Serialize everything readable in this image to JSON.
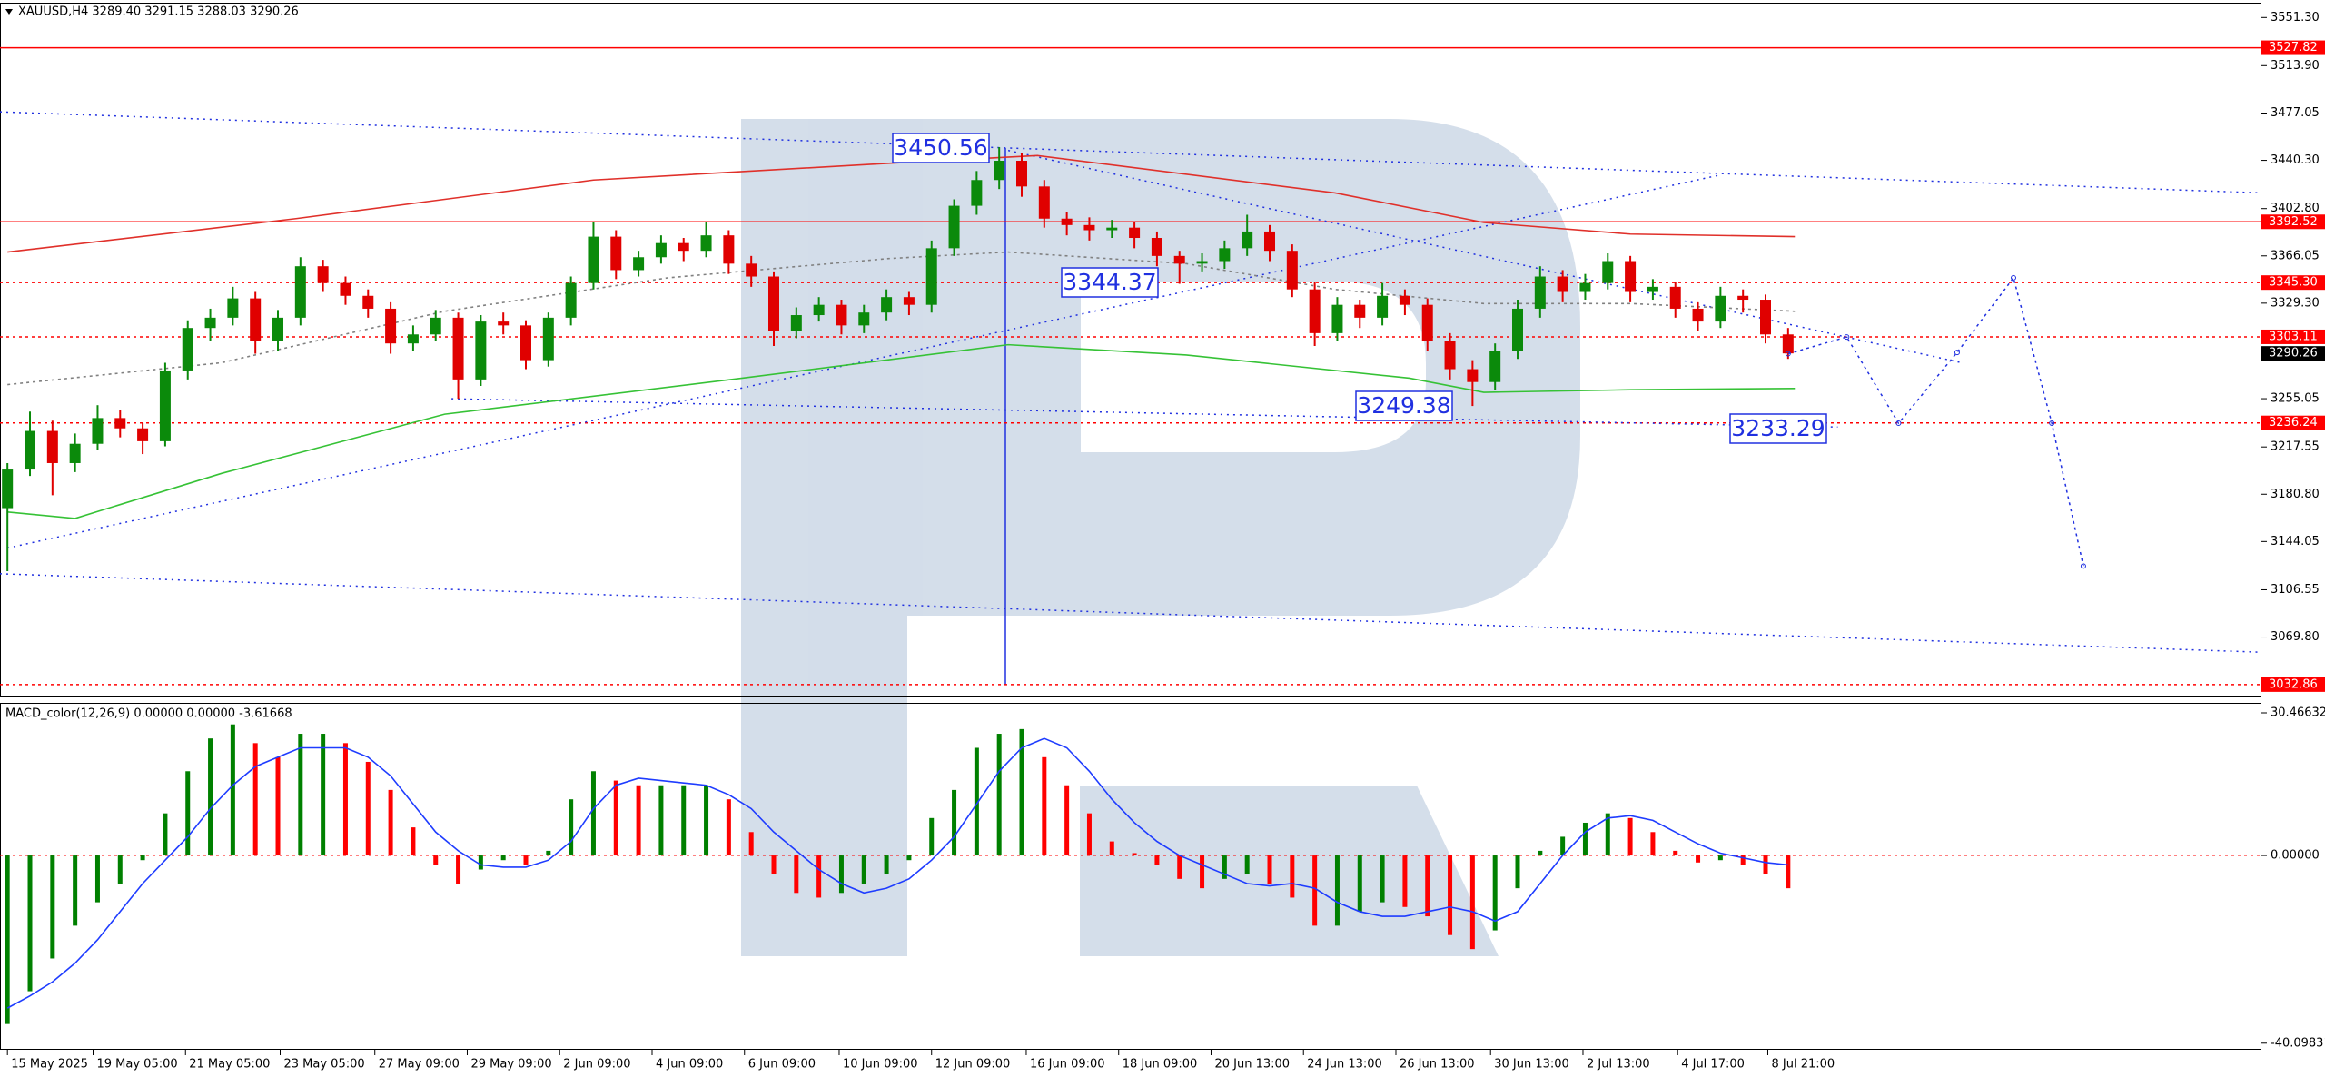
{
  "chart_data": [
    {
      "type": "candlestick",
      "title": "XAUUSD,H4 3289.40 3291.15 3288.03 3290.26",
      "up_color": "#0b8a0b",
      "down_color": "#e00000",
      "xlim": [
        -0.33,
        100
      ],
      "ylim": [
        3023.6,
        3562.8
      ],
      "yticks": [
        {
          "value": 3551.3,
          "label": "3551.30"
        },
        {
          "value": 3513.9,
          "label": "3513.90"
        },
        3477.05,
        {
          "value": 3440.3,
          "label": "3440.30"
        },
        {
          "value": 3402.8,
          "label": "3402.80"
        },
        3366.05,
        {
          "value": 3329.3,
          "label": "3329.30"
        },
        3255.05,
        3217.55,
        {
          "value": 3180.8,
          "label": "3180.80"
        },
        3144.05,
        3106.55,
        {
          "value": 3069.8,
          "label": "3069.80"
        }
      ],
      "candles": [
        [
          3170,
          3205,
          3121,
          3200
        ],
        [
          3200,
          3245,
          3195,
          3230
        ],
        [
          3230,
          3238,
          3180,
          3205
        ],
        [
          3205,
          3228,
          3198,
          3220
        ],
        [
          3220,
          3250,
          3215,
          3240
        ],
        [
          3240,
          3246,
          3225,
          3232
        ],
        [
          3232,
          3236,
          3212,
          3222
        ],
        [
          3222,
          3283,
          3218,
          3277
        ],
        [
          3277,
          3316,
          3270,
          3310
        ],
        [
          3310,
          3325,
          3300,
          3318
        ],
        [
          3318,
          3342,
          3312,
          3333
        ],
        [
          3333,
          3338,
          3290,
          3300
        ],
        [
          3300,
          3324,
          3292,
          3318
        ],
        [
          3318,
          3365,
          3312,
          3358
        ],
        [
          3358,
          3363,
          3338,
          3345
        ],
        [
          3345,
          3350,
          3328,
          3335
        ],
        [
          3335,
          3340,
          3318,
          3325
        ],
        [
          3325,
          3330,
          3290,
          3298
        ],
        [
          3298,
          3312,
          3292,
          3305
        ],
        [
          3305,
          3324,
          3300,
          3318
        ],
        [
          3318,
          3322,
          3255,
          3270
        ],
        [
          3270,
          3320,
          3265,
          3315
        ],
        [
          3315,
          3322,
          3305,
          3312
        ],
        [
          3312,
          3316,
          3278,
          3285
        ],
        [
          3285,
          3322,
          3280,
          3318
        ],
        [
          3318,
          3350,
          3312,
          3345
        ],
        [
          3345,
          3392,
          3340,
          3381
        ],
        [
          3381,
          3386,
          3348,
          3355
        ],
        [
          3355,
          3370,
          3350,
          3365
        ],
        [
          3365,
          3382,
          3360,
          3376
        ],
        [
          3376,
          3380,
          3362,
          3370
        ],
        [
          3370,
          3392,
          3365,
          3382
        ],
        [
          3382,
          3386,
          3352,
          3360
        ],
        [
          3360,
          3366,
          3342,
          3350
        ],
        [
          3350,
          3354,
          3296,
          3308
        ],
        [
          3308,
          3326,
          3302,
          3320
        ],
        [
          3320,
          3334,
          3315,
          3328
        ],
        [
          3328,
          3332,
          3305,
          3312
        ],
        [
          3312,
          3328,
          3306,
          3322
        ],
        [
          3322,
          3340,
          3316,
          3334
        ],
        [
          3334,
          3338,
          3320,
          3328
        ],
        [
          3328,
          3378,
          3322,
          3372
        ],
        [
          3372,
          3410,
          3366,
          3405
        ],
        [
          3405,
          3432,
          3398,
          3425
        ],
        [
          3425,
          3450.56,
          3418,
          3440
        ],
        [
          3440,
          3446,
          3412,
          3420
        ],
        [
          3420,
          3425,
          3388,
          3395
        ],
        [
          3395,
          3400,
          3382,
          3390
        ],
        [
          3390,
          3396,
          3378,
          3386
        ],
        [
          3386,
          3394,
          3380,
          3388
        ],
        [
          3388,
          3392,
          3372,
          3380
        ],
        [
          3380,
          3385,
          3358,
          3366
        ],
        [
          3366,
          3370,
          3344.37,
          3360
        ],
        [
          3360,
          3368,
          3354,
          3362
        ],
        [
          3362,
          3378,
          3356,
          3372
        ],
        [
          3372,
          3398,
          3366,
          3385
        ],
        [
          3385,
          3390,
          3362,
          3370
        ],
        [
          3370,
          3375,
          3334,
          3340
        ],
        [
          3340,
          3346,
          3296,
          3306
        ],
        [
          3306,
          3334,
          3300,
          3328
        ],
        [
          3328,
          3332,
          3310,
          3318
        ],
        [
          3318,
          3345,
          3312,
          3335
        ],
        [
          3335,
          3340,
          3320,
          3328
        ],
        [
          3328,
          3333,
          3292,
          3300
        ],
        [
          3300,
          3306,
          3270,
          3278
        ],
        [
          3278,
          3285,
          3249.38,
          3268
        ],
        [
          3268,
          3298,
          3262,
          3292
        ],
        [
          3292,
          3332,
          3286,
          3325
        ],
        [
          3325,
          3358,
          3318,
          3350
        ],
        [
          3350,
          3355,
          3330,
          3338
        ],
        [
          3338,
          3352,
          3332,
          3345
        ],
        [
          3345,
          3368,
          3340,
          3362
        ],
        [
          3362,
          3366,
          3330,
          3338
        ],
        [
          3338,
          3348,
          3332,
          3342
        ],
        [
          3342,
          3346,
          3318,
          3325
        ],
        [
          3325,
          3330,
          3308,
          3315
        ],
        [
          3315,
          3342,
          3310,
          3335
        ],
        [
          3335,
          3340,
          3322,
          3332
        ],
        [
          3332,
          3336,
          3298,
          3305
        ],
        [
          3305,
          3310,
          3286,
          3290.26
        ]
      ],
      "lines": [
        {
          "color": "#e0302a",
          "dash": false,
          "x": [
            0,
            12.8,
            26,
            39.1,
            45.7,
            58.9,
            65.5,
            72,
            79.3
          ],
          "values": [
            3369,
            3395,
            3425,
            3438,
            3444,
            3415,
            3392,
            3383,
            3381
          ]
        },
        {
          "color": "#36c236",
          "dash": false,
          "x": [
            0,
            3,
            9.5,
            19.4,
            32.6,
            44.4,
            52.3,
            62.2,
            65.5,
            72,
            79.3
          ],
          "values": [
            3167,
            3162,
            3197,
            3243,
            3271,
            3297,
            3289,
            3271,
            3260,
            3262,
            3263
          ]
        },
        {
          "color": "#808080",
          "dash": true,
          "x": [
            0,
            9.5,
            19.4,
            29.3,
            39.1,
            44.4,
            52.3,
            58.9,
            65.5,
            72,
            79.3
          ],
          "values": [
            3266,
            3283,
            3323,
            3349,
            3364,
            3369,
            3360,
            3340,
            3329,
            3329,
            3323
          ]
        }
      ],
      "trendlines": [
        {
          "x": [
            -0.33,
            100
          ],
          "values": [
            3478,
            3415
          ]
        },
        {
          "x": [
            -0.33,
            100
          ],
          "values": [
            3119,
            3058
          ]
        },
        {
          "x": [
            0,
            76
          ],
          "values": [
            3139,
            3429
          ]
        },
        {
          "x": [
            44.4,
            86.7
          ],
          "values": [
            3448,
            3283
          ]
        },
        {
          "x": [
            19.7,
            81.2
          ],
          "values": [
            3255,
            3233
          ]
        }
      ],
      "forecast": {
        "color": "#2030e0",
        "x": [
          79,
          81.6,
          83.9,
          86.5,
          89,
          90.7,
          92.1
        ],
        "values": [
          3290,
          3303,
          3236,
          3291,
          3349,
          3236,
          3125
        ]
      },
      "levels": [
        {
          "value": 3527.82,
          "color": "#ff0000",
          "line": "solid"
        },
        {
          "value": 3392.52,
          "color": "#ff0000",
          "line": "solid"
        },
        {
          "value": 3345.3,
          "label": "3345.30",
          "color": "#ff0000",
          "line": "dotted"
        },
        {
          "value": 3303.11,
          "color": "#ff0000",
          "line": "dotted"
        },
        {
          "value": 3290.26,
          "color": "#000000",
          "line": "none"
        },
        {
          "value": 3236.24,
          "color": "#ff0000",
          "line": "dotted"
        },
        {
          "value": 3032.86,
          "color": "#ff0000",
          "line": "dotted"
        }
      ],
      "annotations": [
        {
          "text": "3450.56"
        },
        {
          "text": "3344.37"
        },
        {
          "text": "3249.38"
        },
        {
          "text": "3233.29"
        }
      ]
    },
    {
      "type": "macd",
      "title": "MACD_color(12,26,9) 0.00000 0.00000 -3.61668",
      "up_color": "#008000",
      "down_color": "#ff0000",
      "signal_color": "#1e3cff",
      "xlim": [
        -0.33,
        100
      ],
      "ylim": [
        -41.5,
        32.6
      ],
      "yticks": [
        30.46632,
        {
          "value": 0,
          "label": "0.00000"
        },
        -40.09831
      ],
      "xticks": [
        {
          "value": 0,
          "label": "15 May 2025"
        },
        {
          "value": 3.8,
          "label": "19 May 05:00"
        },
        {
          "value": 7.9,
          "label": "21 May 05:00"
        },
        {
          "value": 12.1,
          "label": "23 May 05:00"
        },
        {
          "value": 16.3,
          "label": "27 May 09:00"
        },
        {
          "value": 20.4,
          "label": "29 May 09:00"
        },
        {
          "value": 24.5,
          "label": "2 Jun 09:00"
        },
        {
          "value": 28.6,
          "label": "4 Jun 09:00"
        },
        {
          "value": 32.7,
          "label": "6 Jun 09:00"
        },
        {
          "value": 36.9,
          "label": "10 Jun 09:00"
        },
        {
          "value": 41,
          "label": "12 Jun 09:00"
        },
        {
          "value": 45.2,
          "label": "16 Jun 09:00"
        },
        {
          "value": 49.3,
          "label": "18 Jun 09:00"
        },
        {
          "value": 53.4,
          "label": "20 Jun 13:00"
        },
        {
          "value": 57.5,
          "label": "24 Jun 13:00"
        },
        {
          "value": 61.6,
          "label": "26 Jun 13:00"
        },
        {
          "value": 65.8,
          "label": "30 Jun 13:00"
        },
        {
          "value": 69.9,
          "label": "2 Jul 13:00"
        },
        {
          "value": 74.1,
          "label": "4 Jul 17:00"
        },
        {
          "value": 78.1,
          "label": "8 Jul 21:00"
        }
      ],
      "histogram": [
        -36,
        -29,
        -22,
        -15,
        -10,
        -6,
        -1,
        9,
        18,
        25,
        28,
        24,
        21,
        26,
        26,
        24,
        20,
        14,
        6,
        -2,
        -6,
        -3,
        -1,
        -2,
        1,
        12,
        18,
        16,
        15,
        15,
        15,
        15,
        12,
        5,
        -4,
        -8,
        -9,
        -8,
        -6,
        -4,
        -1,
        8,
        14,
        23,
        26,
        27,
        21,
        15,
        9,
        3,
        0.5,
        -2,
        -5,
        -7,
        -5,
        -4,
        -6,
        -9,
        -15,
        -15,
        -12,
        -10,
        -11,
        -13,
        -17,
        -20,
        -16,
        -7,
        1,
        4,
        7,
        9,
        8,
        5,
        1,
        -1.5,
        -1,
        -2,
        -4,
        -7
      ],
      "signal": [
        -32.6,
        -30,
        -27,
        -23,
        -18,
        -12,
        -6,
        -1,
        4,
        10,
        15,
        19,
        21,
        23,
        23,
        23,
        21,
        17,
        11,
        5,
        1,
        -2,
        -2.5,
        -2.5,
        -1,
        3,
        10,
        15,
        16.5,
        16,
        15.5,
        15,
        13,
        10,
        5,
        1,
        -3,
        -6,
        -8,
        -7,
        -5,
        -1,
        4,
        11,
        18,
        23,
        25,
        23,
        18,
        12,
        7,
        3,
        0,
        -2,
        -4,
        -6,
        -6.5,
        -6,
        -7,
        -10,
        -12,
        -13,
        -13,
        -12,
        -11,
        -12,
        -14,
        -12,
        -6,
        0,
        5,
        8,
        8.5,
        7.5,
        5,
        2.5,
        0.5,
        -0.5,
        -1.5,
        -2
      ]
    }
  ]
}
